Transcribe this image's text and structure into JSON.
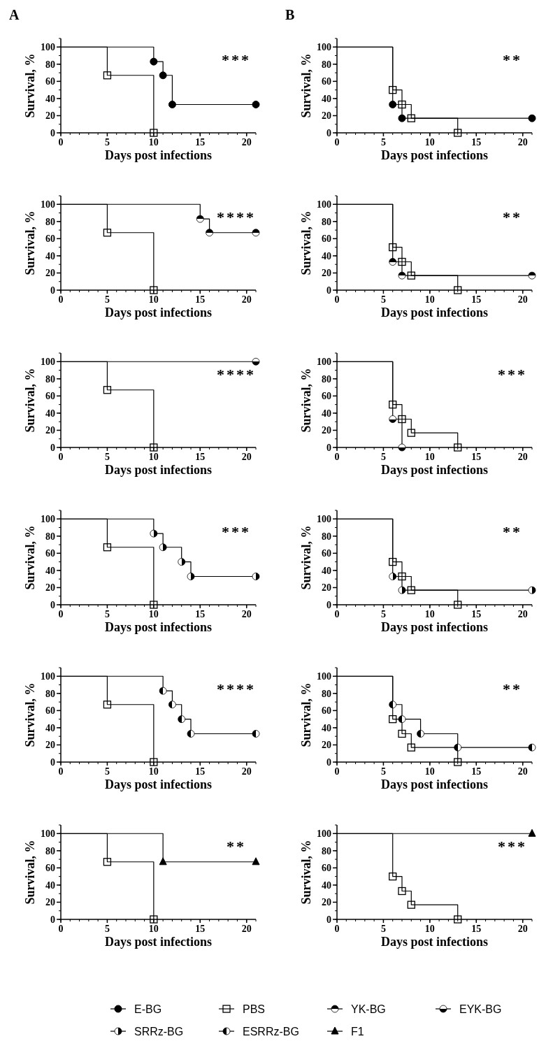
{
  "chart_data": [
    {
      "type": "step",
      "title": "A",
      "xlabel": "Days post infections",
      "ylabel": "Survival, %",
      "xlim": [
        0,
        21
      ],
      "xticks": [
        0,
        5,
        10,
        15,
        20
      ],
      "ylim": [
        0,
        110
      ],
      "yticks": [
        0,
        20,
        40,
        60,
        80,
        100
      ],
      "legend": "bottom",
      "annotations": [
        "***"
      ],
      "series": [
        {
          "name": "E-BG",
          "color": "#000000",
          "marker": "circle",
          "x": [
            0,
            10,
            11,
            12,
            21
          ],
          "values": [
            100,
            83,
            67,
            33,
            33
          ]
        },
        {
          "name": "PBS",
          "color": "#000000",
          "marker": "square",
          "x": [
            0,
            5,
            10
          ],
          "values": [
            100,
            67,
            0
          ]
        }
      ]
    },
    {
      "type": "step",
      "xlabel": "Days post infections",
      "ylabel": "Survival, %",
      "xlim": [
        0,
        21
      ],
      "xticks": [
        0,
        5,
        10,
        15,
        20
      ],
      "ylim": [
        0,
        110
      ],
      "yticks": [
        0,
        20,
        40,
        60,
        80,
        100
      ],
      "legend": "bottom",
      "annotations": [
        "****"
      ],
      "series": [
        {
          "name": "YK-BG",
          "color": "#000000",
          "marker": "circle",
          "x": [
            0,
            15,
            16,
            21
          ],
          "values": [
            100,
            83,
            67,
            67
          ]
        },
        {
          "name": "PBS",
          "color": "#000000",
          "marker": "square",
          "x": [
            0,
            5,
            10
          ],
          "values": [
            100,
            67,
            0
          ]
        }
      ]
    },
    {
      "type": "step",
      "xlabel": "Days post infections",
      "ylabel": "Survival, %",
      "xlim": [
        0,
        21
      ],
      "xticks": [
        0,
        5,
        10,
        15,
        20
      ],
      "ylim": [
        0,
        110
      ],
      "yticks": [
        0,
        20,
        40,
        60,
        80,
        100
      ],
      "legend": "bottom",
      "annotations": [
        "****"
      ],
      "series": [
        {
          "name": "EYK-BG",
          "color": "#000000",
          "marker": "circle",
          "x": [
            0,
            21
          ],
          "values": [
            100,
            100
          ]
        },
        {
          "name": "PBS",
          "color": "#000000",
          "marker": "square",
          "x": [
            0,
            5,
            10
          ],
          "values": [
            100,
            67,
            0
          ]
        }
      ]
    },
    {
      "type": "step",
      "xlabel": "Days post infections",
      "ylabel": "Survival, %",
      "xlim": [
        0,
        21
      ],
      "xticks": [
        0,
        5,
        10,
        15,
        20
      ],
      "ylim": [
        0,
        110
      ],
      "yticks": [
        0,
        20,
        40,
        60,
        80,
        100
      ],
      "legend": "bottom",
      "annotations": [
        "***"
      ],
      "series": [
        {
          "name": "SRRz-BG",
          "color": "#000000",
          "marker": "circle",
          "x": [
            0,
            10,
            11,
            13,
            14,
            21
          ],
          "values": [
            100,
            83,
            67,
            50,
            33,
            33
          ]
        },
        {
          "name": "PBS",
          "color": "#000000",
          "marker": "square",
          "x": [
            0,
            5,
            10
          ],
          "values": [
            100,
            67,
            0
          ]
        }
      ]
    },
    {
      "type": "step",
      "xlabel": "Days post infections",
      "ylabel": "Survival, %",
      "xlim": [
        0,
        21
      ],
      "xticks": [
        0,
        5,
        10,
        15,
        20
      ],
      "ylim": [
        0,
        110
      ],
      "yticks": [
        0,
        20,
        40,
        60,
        80,
        100
      ],
      "legend": "bottom",
      "annotations": [
        "****"
      ],
      "series": [
        {
          "name": "ESRRz-BG",
          "color": "#000000",
          "marker": "circle",
          "x": [
            0,
            11,
            12,
            13,
            14,
            21
          ],
          "values": [
            100,
            83,
            67,
            50,
            33,
            33
          ]
        },
        {
          "name": "PBS",
          "color": "#000000",
          "marker": "square",
          "x": [
            0,
            5,
            10
          ],
          "values": [
            100,
            67,
            0
          ]
        }
      ]
    },
    {
      "type": "step",
      "xlabel": "Days post infections",
      "ylabel": "Survival, %",
      "xlim": [
        0,
        21
      ],
      "xticks": [
        0,
        5,
        10,
        15,
        20
      ],
      "ylim": [
        0,
        110
      ],
      "yticks": [
        0,
        20,
        40,
        60,
        80,
        100
      ],
      "legend": "bottom",
      "annotations": [
        "**"
      ],
      "series": [
        {
          "name": "F1",
          "color": "#000000",
          "marker": "triangle",
          "x": [
            0,
            11,
            21
          ],
          "values": [
            100,
            67,
            67
          ]
        },
        {
          "name": "PBS",
          "color": "#000000",
          "marker": "square",
          "x": [
            0,
            5,
            10
          ],
          "values": [
            100,
            67,
            0
          ]
        }
      ]
    },
    {
      "type": "step",
      "title": "B",
      "xlabel": "Days post infections",
      "ylabel": "Survival, %",
      "xlim": [
        0,
        21
      ],
      "xticks": [
        0,
        5,
        10,
        15,
        20
      ],
      "ylim": [
        0,
        110
      ],
      "yticks": [
        0,
        20,
        40,
        60,
        80,
        100
      ],
      "legend": "bottom",
      "annotations": [
        "**"
      ],
      "series": [
        {
          "name": "E-BG",
          "color": "#000000",
          "marker": "circle",
          "x": [
            0,
            6,
            7,
            21
          ],
          "values": [
            100,
            33,
            17,
            17
          ]
        },
        {
          "name": "PBS",
          "color": "#000000",
          "marker": "square",
          "x": [
            0,
            6,
            7,
            8,
            13
          ],
          "values": [
            100,
            50,
            33,
            17,
            0
          ]
        }
      ]
    },
    {
      "type": "step",
      "xlabel": "Days post infections",
      "ylabel": "Survival, %",
      "xlim": [
        0,
        21
      ],
      "xticks": [
        0,
        5,
        10,
        15,
        20
      ],
      "ylim": [
        0,
        110
      ],
      "yticks": [
        0,
        20,
        40,
        60,
        80,
        100
      ],
      "legend": "bottom",
      "annotations": [
        "**"
      ],
      "series": [
        {
          "name": "YK-BG",
          "color": "#000000",
          "marker": "circle",
          "x": [
            0,
            6,
            7,
            21
          ],
          "values": [
            100,
            33,
            17,
            17
          ]
        },
        {
          "name": "PBS",
          "color": "#000000",
          "marker": "square",
          "x": [
            0,
            6,
            7,
            8,
            13
          ],
          "values": [
            100,
            50,
            33,
            17,
            0
          ]
        }
      ]
    },
    {
      "type": "step",
      "xlabel": "Days post infections",
      "ylabel": "Survival, %",
      "xlim": [
        0,
        21
      ],
      "xticks": [
        0,
        5,
        10,
        15,
        20
      ],
      "ylim": [
        0,
        110
      ],
      "yticks": [
        0,
        20,
        40,
        60,
        80,
        100
      ],
      "legend": "bottom",
      "annotations": [
        "***"
      ],
      "series": [
        {
          "name": "EYK-BG",
          "color": "#000000",
          "marker": "circle",
          "x": [
            0,
            6,
            7
          ],
          "values": [
            100,
            33,
            0
          ]
        },
        {
          "name": "PBS",
          "color": "#000000",
          "marker": "square",
          "x": [
            0,
            6,
            7,
            8,
            13
          ],
          "values": [
            100,
            50,
            33,
            17,
            0
          ]
        }
      ]
    },
    {
      "type": "step",
      "xlabel": "Days post infections",
      "ylabel": "Survival, %",
      "xlim": [
        0,
        21
      ],
      "xticks": [
        0,
        5,
        10,
        15,
        20
      ],
      "ylim": [
        0,
        110
      ],
      "yticks": [
        0,
        20,
        40,
        60,
        80,
        100
      ],
      "legend": "bottom",
      "annotations": [
        "**"
      ],
      "series": [
        {
          "name": "SRRz-BG",
          "color": "#000000",
          "marker": "circle",
          "x": [
            0,
            6,
            7,
            21
          ],
          "values": [
            100,
            33,
            17,
            17
          ]
        },
        {
          "name": "PBS",
          "color": "#000000",
          "marker": "square",
          "x": [
            0,
            6,
            7,
            8,
            13
          ],
          "values": [
            100,
            50,
            33,
            17,
            0
          ]
        }
      ]
    },
    {
      "type": "step",
      "xlabel": "Days post infections",
      "ylabel": "Survival, %",
      "xlim": [
        0,
        21
      ],
      "xticks": [
        0,
        5,
        10,
        15,
        20
      ],
      "ylim": [
        0,
        110
      ],
      "yticks": [
        0,
        20,
        40,
        60,
        80,
        100
      ],
      "legend": "bottom",
      "annotations": [
        "**"
      ],
      "series": [
        {
          "name": "ESRRz-BG",
          "color": "#000000",
          "marker": "circle",
          "x": [
            0,
            6,
            7,
            9,
            13,
            21
          ],
          "values": [
            100,
            67,
            50,
            33,
            17,
            17
          ]
        },
        {
          "name": "PBS",
          "color": "#000000",
          "marker": "square",
          "x": [
            0,
            6,
            7,
            8,
            13
          ],
          "values": [
            100,
            50,
            33,
            17,
            0
          ]
        }
      ]
    },
    {
      "type": "step",
      "xlabel": "Days post infections",
      "ylabel": "Survival, %",
      "xlim": [
        0,
        21
      ],
      "xticks": [
        0,
        5,
        10,
        15,
        20
      ],
      "ylim": [
        0,
        110
      ],
      "yticks": [
        0,
        20,
        40,
        60,
        80,
        100
      ],
      "legend": "bottom",
      "annotations": [
        "***"
      ],
      "series": [
        {
          "name": "F1",
          "color": "#000000",
          "marker": "triangle",
          "x": [
            0,
            21
          ],
          "values": [
            100,
            100
          ]
        },
        {
          "name": "PBS",
          "color": "#000000",
          "marker": "square",
          "x": [
            0,
            6,
            7,
            8,
            13
          ],
          "values": [
            100,
            50,
            33,
            17,
            0
          ]
        }
      ]
    }
  ]
}
